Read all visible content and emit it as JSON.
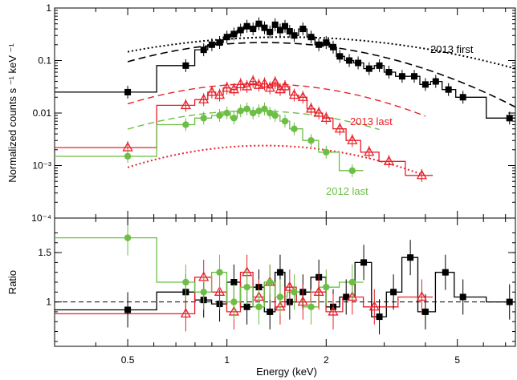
{
  "chart_data": [
    {
      "type": "scatter",
      "panel": "top",
      "xscale": "log",
      "yscale": "log",
      "xlim": [
        0.3,
        7.5
      ],
      "ylim": [
        0.0001,
        1
      ],
      "ylabel": "Normalized counts s ⁻¹ keV ⁻¹",
      "yticks": [
        {
          "value": 1,
          "label": "1"
        },
        {
          "value": 0.1,
          "label": "0.1"
        },
        {
          "value": 0.01,
          "label": "0.01"
        },
        {
          "value": 0.001,
          "label": "10⁻³"
        },
        {
          "value": 0.0001,
          "label": "10⁻⁴"
        }
      ],
      "annotations": [
        {
          "text": "2013 first",
          "color": "#000000",
          "x": 3.9,
          "y": 0.16
        },
        {
          "text": "2013 last",
          "color": "#e8202a",
          "x": 2.85,
          "y": 0.0065
        },
        {
          "text": "2012 last",
          "color": "#6cbe45",
          "x": 2.8,
          "y": 0.00042
        }
      ],
      "series": [
        {
          "color": "#000000",
          "marker": "square",
          "x": [
            0.5,
            0.75,
            0.85,
            0.9,
            0.95,
            1.0,
            1.05,
            1.1,
            1.15,
            1.2,
            1.25,
            1.3,
            1.35,
            1.4,
            1.45,
            1.5,
            1.55,
            1.6,
            1.7,
            1.8,
            1.9,
            2.0,
            2.1,
            2.2,
            2.35,
            2.5,
            2.7,
            2.9,
            3.1,
            3.4,
            3.7,
            4.0,
            4.3,
            4.7,
            5.2,
            7.2
          ],
          "y": [
            0.025,
            0.08,
            0.16,
            0.2,
            0.22,
            0.28,
            0.32,
            0.38,
            0.45,
            0.4,
            0.5,
            0.42,
            0.35,
            0.48,
            0.38,
            0.45,
            0.36,
            0.3,
            0.4,
            0.28,
            0.2,
            0.22,
            0.18,
            0.12,
            0.1,
            0.09,
            0.07,
            0.08,
            0.06,
            0.05,
            0.05,
            0.035,
            0.04,
            0.028,
            0.02,
            0.008
          ]
        },
        {
          "color": "#e8202a",
          "marker": "triangle-open",
          "x": [
            0.5,
            0.75,
            0.85,
            0.9,
            0.95,
            1.0,
            1.05,
            1.1,
            1.15,
            1.2,
            1.25,
            1.3,
            1.35,
            1.4,
            1.45,
            1.5,
            1.6,
            1.7,
            1.8,
            1.9,
            2.0,
            2.2,
            2.4,
            2.7,
            3.1,
            3.9
          ],
          "y": [
            0.0022,
            0.014,
            0.018,
            0.025,
            0.022,
            0.03,
            0.028,
            0.035,
            0.032,
            0.04,
            0.034,
            0.036,
            0.03,
            0.038,
            0.028,
            0.032,
            0.022,
            0.02,
            0.012,
            0.01,
            0.008,
            0.005,
            0.003,
            0.0018,
            0.0012,
            0.00065
          ]
        },
        {
          "color": "#6cbe45",
          "marker": "circle",
          "x": [
            0.5,
            0.75,
            0.85,
            0.95,
            1.0,
            1.05,
            1.1,
            1.15,
            1.2,
            1.25,
            1.3,
            1.35,
            1.4,
            1.5,
            1.6,
            1.8,
            2.0,
            2.4
          ],
          "y": [
            0.0015,
            0.006,
            0.008,
            0.009,
            0.01,
            0.008,
            0.011,
            0.012,
            0.01,
            0.011,
            0.012,
            0.01,
            0.009,
            0.007,
            0.005,
            0.003,
            0.0018,
            0.0008
          ]
        }
      ]
    },
    {
      "type": "scatter",
      "panel": "bottom",
      "xscale": "log",
      "xlim": [
        0.3,
        7.5
      ],
      "ylim": [
        0.55,
        1.85
      ],
      "xlabel": "Energy (keV)",
      "ylabel": "Ratio",
      "xticks": [
        {
          "value": 0.5,
          "label": "0.5"
        },
        {
          "value": 1,
          "label": "1"
        },
        {
          "value": 2,
          "label": "2"
        },
        {
          "value": 5,
          "label": "5"
        }
      ],
      "yticks": [
        {
          "value": 1,
          "label": "1"
        },
        {
          "value": 1.5,
          "label": "1.5"
        }
      ],
      "reference_line": 1,
      "series": [
        {
          "color": "#000000",
          "marker": "square",
          "x": [
            0.5,
            0.75,
            0.85,
            0.95,
            1.05,
            1.15,
            1.25,
            1.35,
            1.45,
            1.55,
            1.7,
            1.9,
            2.1,
            2.3,
            2.6,
            2.9,
            3.2,
            3.6,
            4.0,
            4.6,
            5.2,
            7.2
          ],
          "y": [
            0.92,
            1.1,
            1.02,
            0.98,
            1.2,
            0.95,
            1.15,
            0.9,
            1.3,
            1.0,
            1.1,
            1.25,
            0.95,
            1.05,
            1.4,
            0.85,
            1.1,
            1.45,
            0.9,
            1.3,
            1.05,
            1.0
          ]
        },
        {
          "color": "#e8202a",
          "marker": "triangle-open",
          "x": [
            0.75,
            0.85,
            0.95,
            1.05,
            1.15,
            1.25,
            1.35,
            1.45,
            1.55,
            1.7,
            1.9,
            2.1,
            2.4,
            2.8,
            3.9
          ],
          "y": [
            0.88,
            1.25,
            1.1,
            0.9,
            1.3,
            1.05,
            1.2,
            0.95,
            1.15,
            1.0,
            1.1,
            0.9,
            1.05,
            0.95,
            1.05
          ]
        },
        {
          "color": "#6cbe45",
          "marker": "circle",
          "x": [
            0.5,
            0.75,
            0.85,
            0.95,
            1.05,
            1.15,
            1.25,
            1.35,
            1.45,
            1.6,
            1.8,
            2.0,
            2.4
          ],
          "y": [
            1.65,
            1.2,
            1.1,
            1.3,
            1.0,
            1.15,
            0.95,
            1.2,
            1.05,
            1.1,
            0.95,
            1.15,
            1.2
          ]
        }
      ]
    }
  ]
}
